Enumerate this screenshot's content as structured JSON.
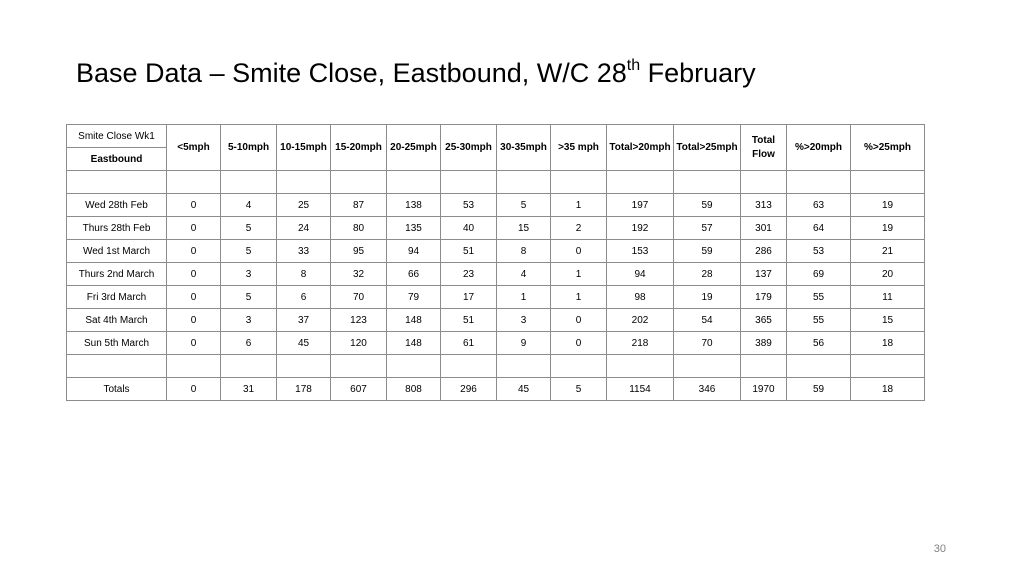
{
  "slide": {
    "title_main": "Base Data – Smite Close, Eastbound, W/C 28",
    "title_sup": "th",
    "title_end": " February",
    "page_number": "30"
  },
  "table": {
    "corner_top": "Smite Close Wk1",
    "corner_bottom": "Eastbound",
    "headers": [
      "<5mph",
      "5-10mph",
      "10-15mph",
      "15-20mph",
      "20-25mph",
      "25-30mph",
      "30-35mph",
      ">35 mph",
      "Total>20mph",
      "Total>25mph",
      "Total Flow",
      "%>20mph",
      "%>25mph"
    ],
    "rows": [
      {
        "label": "Wed 28th Feb",
        "values": [
          "0",
          "4",
          "25",
          "87",
          "138",
          "53",
          "5",
          "1",
          "197",
          "59",
          "313",
          "63",
          "19"
        ]
      },
      {
        "label": "Thurs  28th Feb",
        "values": [
          "0",
          "5",
          "24",
          "80",
          "135",
          "40",
          "15",
          "2",
          "192",
          "57",
          "301",
          "64",
          "19"
        ]
      },
      {
        "label": "Wed  1st March",
        "values": [
          "0",
          "5",
          "33",
          "95",
          "94",
          "51",
          "8",
          "0",
          "153",
          "59",
          "286",
          "53",
          "21"
        ]
      },
      {
        "label": "Thurs 2nd March",
        "values": [
          "0",
          "3",
          "8",
          "32",
          "66",
          "23",
          "4",
          "1",
          "94",
          "28",
          "137",
          "69",
          "20"
        ]
      },
      {
        "label": "Fri 3rd March",
        "values": [
          "0",
          "5",
          "6",
          "70",
          "79",
          "17",
          "1",
          "1",
          "98",
          "19",
          "179",
          "55",
          "11"
        ]
      },
      {
        "label": "Sat 4th March",
        "values": [
          "0",
          "3",
          "37",
          "123",
          "148",
          "51",
          "3",
          "0",
          "202",
          "54",
          "365",
          "55",
          "15"
        ]
      },
      {
        "label": "Sun  5th March",
        "values": [
          "0",
          "6",
          "45",
          "120",
          "148",
          "61",
          "9",
          "0",
          "218",
          "70",
          "389",
          "56",
          "18"
        ]
      }
    ],
    "totals": {
      "label": "Totals",
      "values": [
        "0",
        "31",
        "178",
        "607",
        "808",
        "296",
        "45",
        "5",
        "1154",
        "346",
        "1970",
        "59",
        "18"
      ]
    }
  }
}
